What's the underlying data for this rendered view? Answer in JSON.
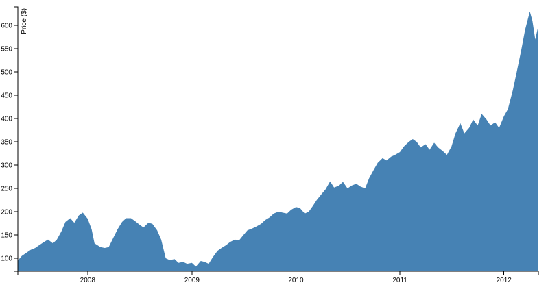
{
  "chart_data": {
    "type": "area",
    "title": "",
    "xlabel": "",
    "ylabel": "Price ($)",
    "color": "#4682b4",
    "grid": false,
    "xlim": [
      "2007-05-01",
      "2012-05-01"
    ],
    "ylim": [
      72,
      640
    ],
    "x_ticks": [
      "2008",
      "2009",
      "2010",
      "2011",
      "2012"
    ],
    "y_ticks": [
      100,
      150,
      200,
      250,
      300,
      350,
      400,
      450,
      500,
      550,
      600
    ],
    "series": [
      {
        "points": [
          [
            "2007-05-01",
            95
          ],
          [
            "2007-05-15",
            105
          ],
          [
            "2007-06-01",
            112
          ],
          [
            "2007-06-15",
            118
          ],
          [
            "2007-07-01",
            122
          ],
          [
            "2007-07-15",
            128
          ],
          [
            "2007-08-01",
            135
          ],
          [
            "2007-08-15",
            140
          ],
          [
            "2007-09-01",
            132
          ],
          [
            "2007-09-15",
            140
          ],
          [
            "2007-10-01",
            158
          ],
          [
            "2007-10-15",
            178
          ],
          [
            "2007-11-01",
            186
          ],
          [
            "2007-11-15",
            176
          ],
          [
            "2007-12-01",
            192
          ],
          [
            "2007-12-15",
            198
          ],
          [
            "2008-01-01",
            185
          ],
          [
            "2008-01-15",
            162
          ],
          [
            "2008-01-25",
            132
          ],
          [
            "2008-02-15",
            124
          ],
          [
            "2008-03-01",
            122
          ],
          [
            "2008-03-15",
            124
          ],
          [
            "2008-04-01",
            145
          ],
          [
            "2008-04-15",
            162
          ],
          [
            "2008-05-01",
            178
          ],
          [
            "2008-05-15",
            186
          ],
          [
            "2008-06-01",
            186
          ],
          [
            "2008-06-15",
            180
          ],
          [
            "2008-07-01",
            172
          ],
          [
            "2008-07-15",
            166
          ],
          [
            "2008-08-01",
            176
          ],
          [
            "2008-08-15",
            174
          ],
          [
            "2008-09-01",
            160
          ],
          [
            "2008-09-15",
            140
          ],
          [
            "2008-10-01",
            100
          ],
          [
            "2008-10-15",
            96
          ],
          [
            "2008-11-01",
            98
          ],
          [
            "2008-11-15",
            90
          ],
          [
            "2008-12-01",
            92
          ],
          [
            "2008-12-15",
            88
          ],
          [
            "2009-01-01",
            90
          ],
          [
            "2009-01-15",
            82
          ],
          [
            "2009-02-01",
            94
          ],
          [
            "2009-02-15",
            92
          ],
          [
            "2009-03-01",
            88
          ],
          [
            "2009-03-15",
            102
          ],
          [
            "2009-04-01",
            116
          ],
          [
            "2009-04-15",
            122
          ],
          [
            "2009-05-01",
            128
          ],
          [
            "2009-05-15",
            135
          ],
          [
            "2009-06-01",
            140
          ],
          [
            "2009-06-15",
            138
          ],
          [
            "2009-07-01",
            150
          ],
          [
            "2009-07-15",
            160
          ],
          [
            "2009-08-01",
            164
          ],
          [
            "2009-08-15",
            168
          ],
          [
            "2009-09-01",
            174
          ],
          [
            "2009-09-15",
            182
          ],
          [
            "2009-10-01",
            188
          ],
          [
            "2009-10-15",
            196
          ],
          [
            "2009-11-01",
            200
          ],
          [
            "2009-11-15",
            198
          ],
          [
            "2009-12-01",
            196
          ],
          [
            "2009-12-15",
            204
          ],
          [
            "2010-01-01",
            210
          ],
          [
            "2010-01-15",
            208
          ],
          [
            "2010-02-01",
            196
          ],
          [
            "2010-02-15",
            200
          ],
          [
            "2010-03-01",
            212
          ],
          [
            "2010-03-15",
            225
          ],
          [
            "2010-04-01",
            238
          ],
          [
            "2010-04-15",
            248
          ],
          [
            "2010-05-01",
            265
          ],
          [
            "2010-05-15",
            252
          ],
          [
            "2010-06-01",
            256
          ],
          [
            "2010-06-15",
            264
          ],
          [
            "2010-07-01",
            250
          ],
          [
            "2010-07-15",
            256
          ],
          [
            "2010-08-01",
            260
          ],
          [
            "2010-08-15",
            254
          ],
          [
            "2010-09-01",
            250
          ],
          [
            "2010-09-15",
            272
          ],
          [
            "2010-10-01",
            290
          ],
          [
            "2010-10-15",
            305
          ],
          [
            "2010-11-01",
            315
          ],
          [
            "2010-11-15",
            310
          ],
          [
            "2010-12-01",
            318
          ],
          [
            "2010-12-15",
            322
          ],
          [
            "2011-01-01",
            328
          ],
          [
            "2011-01-15",
            340
          ],
          [
            "2011-02-01",
            350
          ],
          [
            "2011-02-15",
            356
          ],
          [
            "2011-03-01",
            350
          ],
          [
            "2011-03-15",
            338
          ],
          [
            "2011-04-01",
            345
          ],
          [
            "2011-04-15",
            333
          ],
          [
            "2011-05-01",
            348
          ],
          [
            "2011-05-15",
            338
          ],
          [
            "2011-06-01",
            330
          ],
          [
            "2011-06-15",
            322
          ],
          [
            "2011-07-01",
            340
          ],
          [
            "2011-07-15",
            368
          ],
          [
            "2011-08-01",
            390
          ],
          [
            "2011-08-15",
            368
          ],
          [
            "2011-09-01",
            380
          ],
          [
            "2011-09-15",
            398
          ],
          [
            "2011-10-01",
            385
          ],
          [
            "2011-10-15",
            410
          ],
          [
            "2011-11-01",
            398
          ],
          [
            "2011-11-15",
            385
          ],
          [
            "2011-12-01",
            392
          ],
          [
            "2011-12-15",
            380
          ],
          [
            "2012-01-01",
            405
          ],
          [
            "2012-01-15",
            420
          ],
          [
            "2012-02-01",
            460
          ],
          [
            "2012-02-15",
            500
          ],
          [
            "2012-03-01",
            545
          ],
          [
            "2012-03-15",
            590
          ],
          [
            "2012-04-01",
            630
          ],
          [
            "2012-04-10",
            610
          ],
          [
            "2012-04-20",
            570
          ],
          [
            "2012-05-01",
            600
          ]
        ]
      }
    ]
  }
}
